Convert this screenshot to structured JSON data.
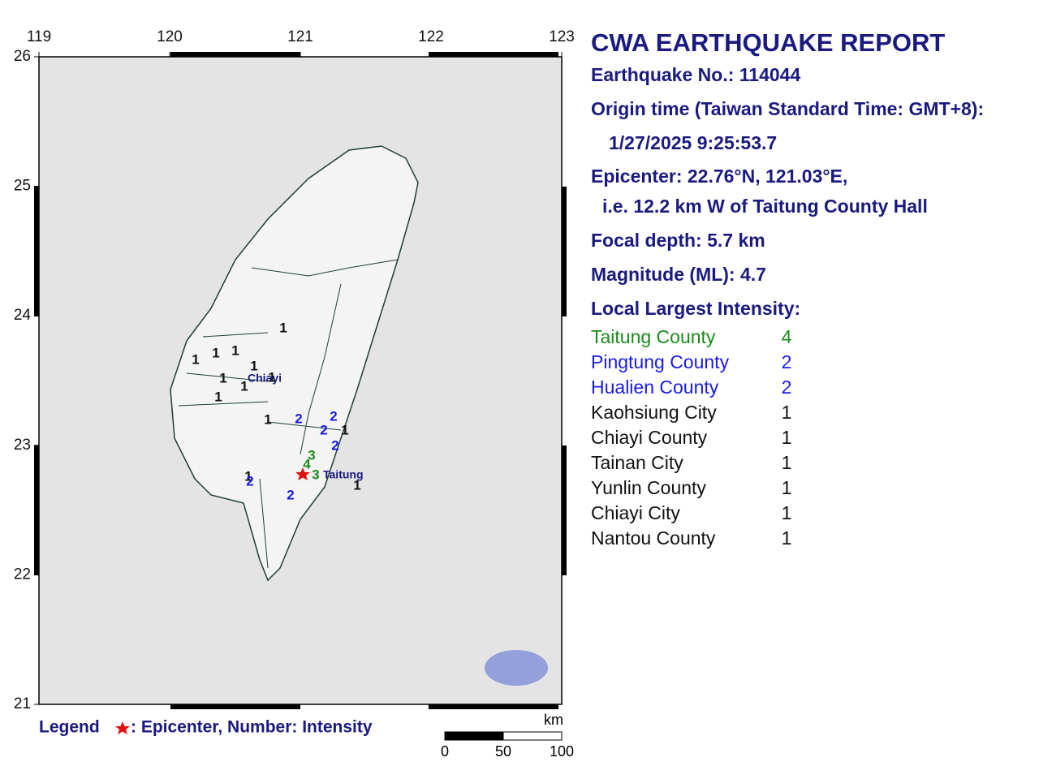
{
  "map": {
    "xticks": [
      119,
      120,
      121,
      122,
      123
    ],
    "yticks": [
      21,
      22,
      23,
      24,
      25,
      26
    ],
    "places": [
      "Chiayi",
      "Taitung"
    ],
    "intensity_colors": {
      "1": "#111111",
      "2": "#1a1ae6",
      "3": "#1a8c1a",
      "4": "#1a8c1a"
    },
    "stations": [
      "1",
      "1",
      "1",
      "1",
      "1",
      "1",
      "1",
      "1",
      "1",
      "1",
      "2",
      "2",
      "2",
      "1",
      "2",
      "3",
      "4",
      "3",
      "1",
      "2",
      "2",
      "1"
    ],
    "scale": {
      "unit": "km",
      "labels": [
        "0",
        "50",
        "100"
      ]
    },
    "legend": {
      "title": "Legend",
      "text": ": Epicenter, Number: Intensity"
    }
  },
  "report": {
    "title": "CWA EARTHQUAKE REPORT",
    "lines": [
      "Earthquake No.: 114044",
      "Origin time (Taiwan Standard Time: GMT+8):",
      "1/27/2025  9:25:53.7",
      "Epicenter: 22.76°N, 121.03°E,",
      "i.e. 12.2 km W of Taitung County Hall",
      "Focal depth: 5.7 km",
      "Magnitude (ML): 4.7",
      "Local Largest Intensity:"
    ],
    "intensities": [
      {
        "area": "Taitung County",
        "value": 4,
        "color": "#1a8c1a"
      },
      {
        "area": "Pingtung County",
        "value": 2,
        "color": "#1a1ae6"
      },
      {
        "area": "Hualien County",
        "value": 2,
        "color": "#1a1ae6"
      },
      {
        "area": "Kaohsiung City",
        "value": 1,
        "color": "#111111"
      },
      {
        "area": "Chiayi County",
        "value": 1,
        "color": "#111111"
      },
      {
        "area": "Tainan City",
        "value": 1,
        "color": "#111111"
      },
      {
        "area": "Yunlin County",
        "value": 1,
        "color": "#111111"
      },
      {
        "area": "Chiayi City",
        "value": 1,
        "color": "#111111"
      },
      {
        "area": "Nantou County",
        "value": 1,
        "color": "#111111"
      }
    ]
  }
}
